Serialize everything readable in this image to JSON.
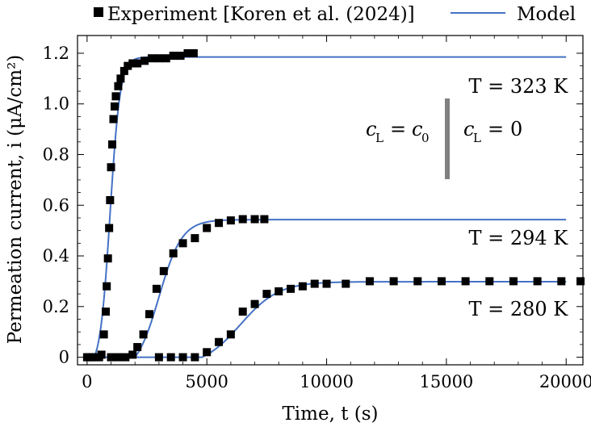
{
  "chart_data": {
    "type": "line",
    "xlabel": "Time, t (s)",
    "ylabel": "Permeation current, i (μA/cm²)",
    "xlim": [
      -400,
      20700
    ],
    "ylim": [
      -0.03,
      1.27
    ],
    "xticks": [
      0,
      5000,
      10000,
      15000,
      20000
    ],
    "yticks": [
      0,
      0.2,
      0.4,
      0.6,
      0.8,
      1.0,
      1.2
    ],
    "ytick_labels": [
      "0",
      "0.2",
      "0.4",
      "0.6",
      "0.8",
      "1.0",
      "1.2"
    ],
    "legend": {
      "placement": "top",
      "experiment_label": "Experiment [Koren et al. (2024)]",
      "model_label": "Model"
    },
    "colors": {
      "model": "#4472c4",
      "experiment": "#000000",
      "divider": "#808080"
    },
    "series": [
      {
        "name": "Experiment",
        "kind": "marker",
        "points": [
          [
            0,
            0.0
          ],
          [
            100,
            0.0
          ],
          [
            200,
            0.0
          ],
          [
            350,
            0.0
          ],
          [
            500,
            0.0
          ],
          [
            600,
            0.01
          ],
          [
            700,
            0.09
          ],
          [
            780,
            0.18
          ],
          [
            820,
            0.28
          ],
          [
            870,
            0.39
          ],
          [
            920,
            0.51
          ],
          [
            960,
            0.62
          ],
          [
            1000,
            0.75
          ],
          [
            1050,
            0.84
          ],
          [
            1100,
            0.94
          ],
          [
            1150,
            0.99
          ],
          [
            1200,
            1.03
          ],
          [
            1300,
            1.07
          ],
          [
            1400,
            1.1
          ],
          [
            1550,
            1.13
          ],
          [
            1700,
            1.15
          ],
          [
            1900,
            1.16
          ],
          [
            2100,
            1.16
          ],
          [
            2400,
            1.17
          ],
          [
            2700,
            1.18
          ],
          [
            3000,
            1.18
          ],
          [
            3300,
            1.18
          ],
          [
            3600,
            1.19
          ],
          [
            3900,
            1.19
          ],
          [
            4200,
            1.2
          ],
          [
            4450,
            1.2
          ],
          [
            1000,
            0.0
          ],
          [
            1300,
            0.0
          ],
          [
            1600,
            0.0
          ],
          [
            1900,
            0.01
          ],
          [
            2100,
            0.04
          ],
          [
            2350,
            0.09
          ],
          [
            2600,
            0.17
          ],
          [
            2900,
            0.27
          ],
          [
            3200,
            0.34
          ],
          [
            3600,
            0.41
          ],
          [
            4000,
            0.45
          ],
          [
            4500,
            0.47
          ],
          [
            5000,
            0.51
          ],
          [
            5500,
            0.53
          ],
          [
            6000,
            0.54
          ],
          [
            6500,
            0.545
          ],
          [
            7000,
            0.545
          ],
          [
            7400,
            0.545
          ],
          [
            3000,
            0.0
          ],
          [
            3500,
            0.0
          ],
          [
            4000,
            0.0
          ],
          [
            4500,
            0.0
          ],
          [
            5000,
            0.02
          ],
          [
            5500,
            0.06
          ],
          [
            6000,
            0.09
          ],
          [
            6500,
            0.18
          ],
          [
            7000,
            0.21
          ],
          [
            7500,
            0.25
          ],
          [
            8000,
            0.26
          ],
          [
            8500,
            0.27
          ],
          [
            9000,
            0.28
          ],
          [
            9500,
            0.29
          ],
          [
            10000,
            0.29
          ],
          [
            10800,
            0.29
          ],
          [
            11800,
            0.3
          ],
          [
            12800,
            0.3
          ],
          [
            13800,
            0.3
          ],
          [
            14800,
            0.3
          ],
          [
            15800,
            0.3
          ],
          [
            16800,
            0.3
          ],
          [
            17800,
            0.3
          ],
          [
            18800,
            0.3
          ],
          [
            19800,
            0.3
          ],
          [
            20600,
            0.3
          ]
        ]
      },
      {
        "name": "Model",
        "kind": "line",
        "curve": "T = 323 K",
        "imax": 1.185,
        "t0": 300,
        "tmid": 960,
        "width": 210,
        "t_end": 20000
      },
      {
        "name": "Model",
        "kind": "line",
        "curve": "T = 294 K",
        "imax": 0.543,
        "t0": 2000,
        "tmid": 3000,
        "width": 480,
        "t_end": 20000
      },
      {
        "name": "Model",
        "kind": "line",
        "curve": "T = 280 K",
        "imax": 0.298,
        "t0": 4800,
        "tmid": 6400,
        "width": 800,
        "t_end": 20000
      }
    ],
    "annotations": [
      {
        "text": "T = 323 K",
        "x": 20000,
        "y": 1.07
      },
      {
        "text": "T = 294 K",
        "x": 20000,
        "y": 0.47
      },
      {
        "text": "T = 280 K",
        "x": 20000,
        "y": 0.19
      }
    ],
    "boundary_text": {
      "left": "c",
      "left_sub": "L",
      "left_eq": "= c",
      "left_sub2": "0",
      "right": "c",
      "right_sub": "L",
      "right_eq": "= 0"
    }
  }
}
